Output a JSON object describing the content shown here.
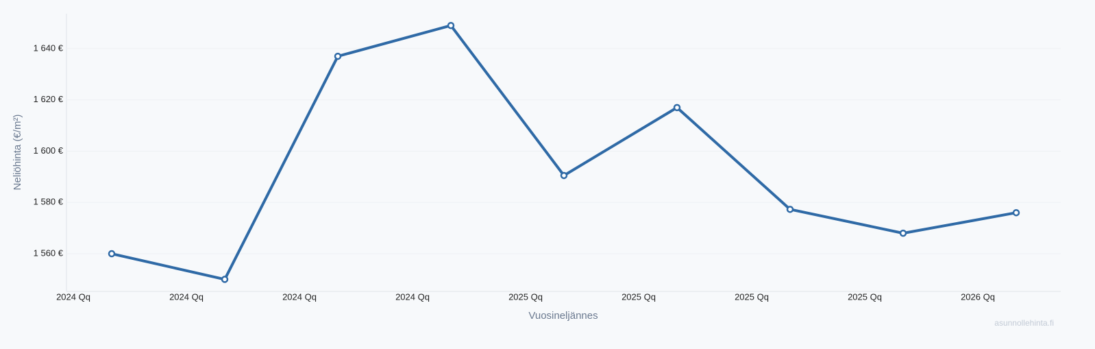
{
  "chart_data": {
    "type": "line",
    "x_label": "Vuosineljännes",
    "y_label": "Neliöhinta (€/m²)",
    "watermark": "asunnollehinta.fi",
    "categories": [
      "2024 Qq",
      "2024 Qq",
      "2024 Qq",
      "2024 Qq",
      "2025 Qq",
      "2025 Qq",
      "2025 Qq",
      "2025 Qq",
      "2026 Qq"
    ],
    "series": [
      {
        "color": "#2f6aa6",
        "values": [
          1560,
          1550,
          1637,
          1649,
          1590.5,
          1617,
          1577.3,
          1568,
          1576
        ]
      }
    ],
    "ylim": [
      1545.3,
      1653.6
    ],
    "yticks": [
      {
        "value": 1560,
        "label": "1 560 €"
      },
      {
        "value": 1580,
        "label": "1 580 €"
      },
      {
        "value": 1600,
        "label": "1 600 €"
      },
      {
        "value": 1620,
        "label": "1 620 €"
      },
      {
        "value": 1640,
        "label": "1 640 €"
      }
    ],
    "grid": true
  }
}
